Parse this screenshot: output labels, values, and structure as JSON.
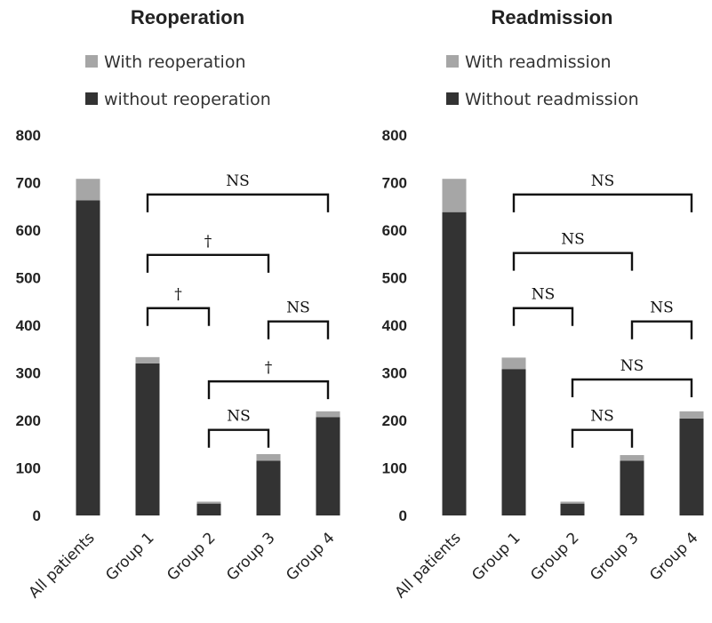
{
  "chart_data": [
    {
      "type": "bar",
      "stacked": true,
      "title": "Reoperation",
      "categories": [
        "All patients",
        "Group 1",
        "Group 2",
        "Group 3",
        "Group 4"
      ],
      "ylim": [
        0,
        800
      ],
      "yticks": [
        "0",
        "100",
        "200",
        "300",
        "400",
        "500",
        "600",
        "700",
        "800"
      ],
      "legend_position": "top",
      "series": [
        {
          "name": "With reoperation",
          "color": "#a6a6a6",
          "values": [
            45,
            13,
            4,
            14,
            12
          ]
        },
        {
          "name": "without reoperation",
          "color": "#333333",
          "values": [
            663,
            320,
            25,
            115,
            207
          ]
        }
      ],
      "annotations": [
        {
          "from": "Group 1",
          "to": "Group 4",
          "label": "NS",
          "level": 675
        },
        {
          "from": "Group 1",
          "to": "Group 3",
          "label": "†",
          "level": 548
        },
        {
          "from": "Group 1",
          "to": "Group 2",
          "label": "†",
          "level": 436
        },
        {
          "from": "Group 3",
          "to": "Group 4",
          "label": "NS",
          "level": 408
        },
        {
          "from": "Group 2",
          "to": "Group 4",
          "label": "†",
          "level": 282
        },
        {
          "from": "Group 2",
          "to": "Group 3",
          "label": "NS",
          "level": 180
        }
      ]
    },
    {
      "type": "bar",
      "stacked": true,
      "title": "Readmission",
      "categories": [
        "All patients",
        "Group 1",
        "Group 2",
        "Group 3",
        "Group 4"
      ],
      "ylim": [
        0,
        800
      ],
      "yticks": [
        "0",
        "100",
        "200",
        "300",
        "400",
        "500",
        "600",
        "700",
        "800"
      ],
      "legend_position": "top",
      "series": [
        {
          "name": "With readmission",
          "color": "#a6a6a6",
          "values": [
            70,
            24,
            4,
            12,
            15
          ]
        },
        {
          "name": "Without readmission",
          "color": "#333333",
          "values": [
            638,
            308,
            25,
            115,
            204
          ]
        }
      ],
      "annotations": [
        {
          "from": "Group 1",
          "to": "Group 4",
          "label": "NS",
          "level": 675
        },
        {
          "from": "Group 1",
          "to": "Group 3",
          "label": "NS",
          "level": 552
        },
        {
          "from": "Group 1",
          "to": "Group 2",
          "label": "NS",
          "level": 436
        },
        {
          "from": "Group 3",
          "to": "Group 4",
          "label": "NS",
          "level": 408
        },
        {
          "from": "Group 2",
          "to": "Group 4",
          "label": "NS",
          "level": 286
        },
        {
          "from": "Group 2",
          "to": "Group 3",
          "label": "NS",
          "level": 180
        }
      ]
    }
  ]
}
